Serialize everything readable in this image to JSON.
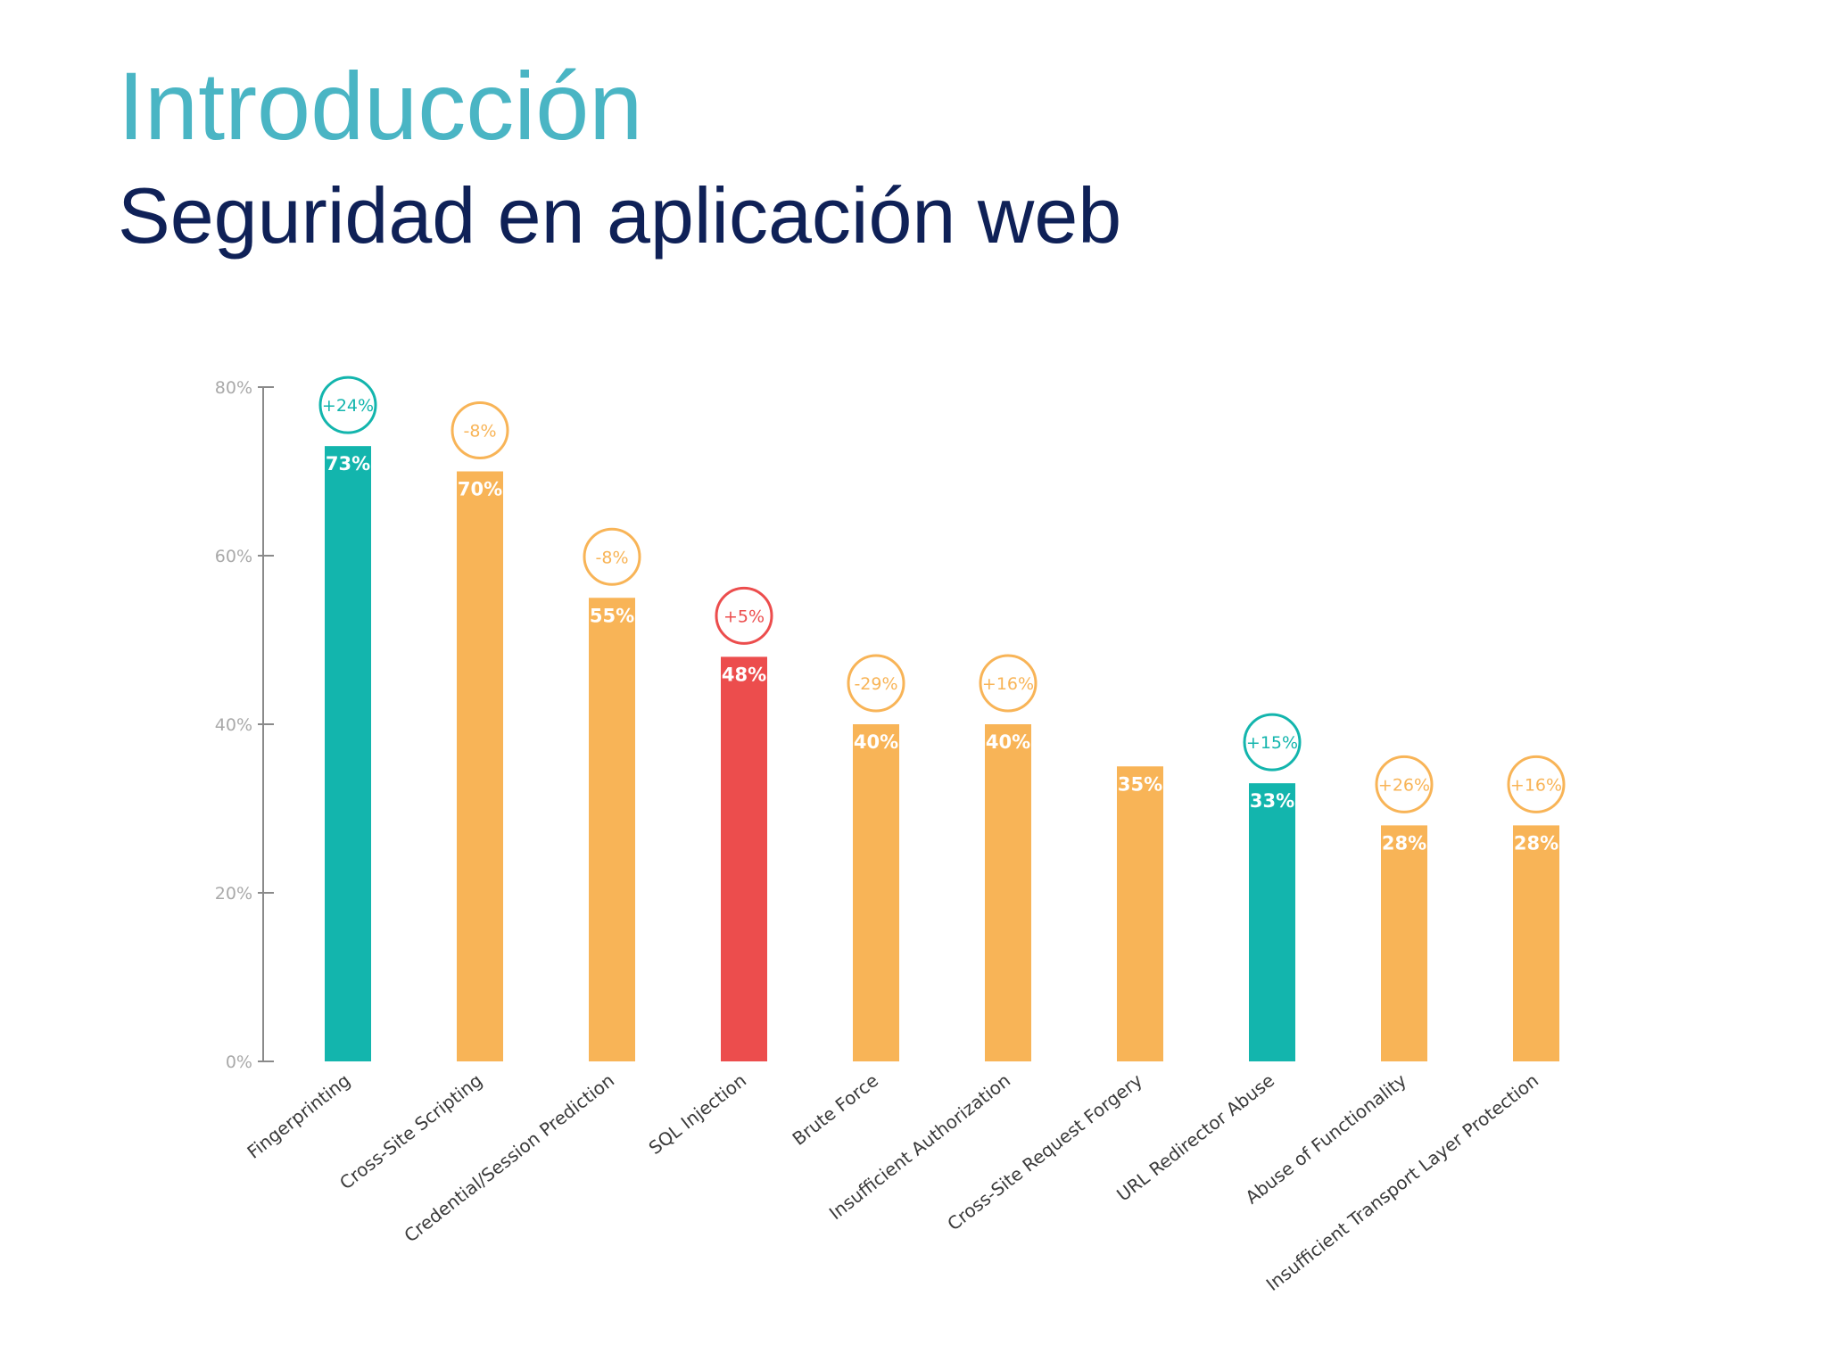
{
  "slide": {
    "title": "Introducción",
    "subtitle": "Seguridad en aplicación web"
  },
  "colors": {
    "title": "#4ab5c4",
    "subtitle": "#0f2157",
    "teal": "#13b5ad",
    "orange": "#f8b457",
    "red": "#ec4d4d",
    "axis": "#8a8a8a"
  },
  "chart_data": {
    "type": "bar",
    "title": "",
    "xlabel": "",
    "ylabel": "",
    "ylim": [
      0,
      80
    ],
    "yticks": [
      "0%",
      "20%",
      "40%",
      "60%",
      "80%"
    ],
    "ytick_values": [
      0,
      20,
      40,
      60,
      80
    ],
    "grid": false,
    "categories": [
      "Fingerprinting",
      "Cross-Site Scripting",
      "Credential/Session Prediction",
      "SQL Injection",
      "Brute Force",
      "Insufficient Authorization",
      "Cross-Site Request Forgery",
      "URL Redirector Abuse",
      "Abuse of Functionality",
      "Insufficient Transport Layer Protection"
    ],
    "values": [
      73,
      70,
      55,
      48,
      40,
      40,
      35,
      33,
      28,
      28
    ],
    "value_labels": [
      "73%",
      "70%",
      "55%",
      "48%",
      "40%",
      "40%",
      "35%",
      "33%",
      "28%",
      "28%"
    ],
    "change_labels": [
      "+24%",
      "-8%",
      "-8%",
      "+5%",
      "-29%",
      "+16%",
      "",
      "+15%",
      "+26%",
      "+16%"
    ],
    "bar_colors": [
      "teal",
      "orange",
      "orange",
      "red",
      "orange",
      "orange",
      "orange",
      "teal",
      "orange",
      "orange"
    ]
  }
}
